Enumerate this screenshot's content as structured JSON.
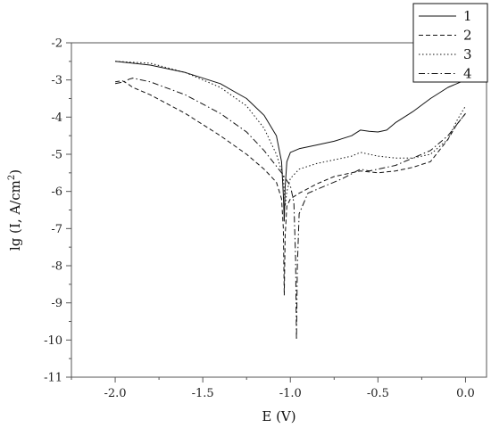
{
  "chart_data": {
    "type": "line",
    "title": "",
    "xlabel": "E (V)",
    "ylabel": "lg (I, A/cm²)",
    "ylabel_base": "lg (I, A/cm",
    "ylabel_sup": "2",
    "ylabel_tail": ")",
    "xlim": [
      -2.25,
      0.12
    ],
    "ylim": [
      -11,
      -2
    ],
    "xticks": [
      -2.0,
      -1.5,
      -1.0,
      -0.5,
      0.0
    ],
    "xtick_labels": [
      "-2.0",
      "-1.5",
      "-1.0",
      "-0.5",
      "0.0"
    ],
    "yticks": [
      -2,
      -3,
      -4,
      -5,
      -6,
      -7,
      -8,
      -9,
      -10,
      -11
    ],
    "ytick_labels": [
      "-2",
      "-3",
      "-4",
      "-5",
      "-6",
      "-7",
      "-8",
      "-9",
      "-10",
      "-11"
    ],
    "grid": false,
    "legend_position": "top-right",
    "series": [
      {
        "name": "1",
        "style": "solid",
        "x": [
          -2.0,
          -1.8,
          -1.6,
          -1.4,
          -1.25,
          -1.15,
          -1.08,
          -1.05,
          -1.04,
          -1.035,
          -1.03,
          -1.02,
          -1.0,
          -0.95,
          -0.85,
          -0.75,
          -0.65,
          -0.6,
          -0.55,
          -0.5,
          -0.45,
          -0.4,
          -0.3,
          -0.2,
          -0.1,
          0.0
        ],
        "y": [
          -2.5,
          -2.6,
          -2.8,
          -3.1,
          -3.5,
          -3.95,
          -4.5,
          -5.2,
          -6.1,
          -6.8,
          -5.9,
          -5.2,
          -4.95,
          -4.85,
          -4.75,
          -4.65,
          -4.5,
          -4.35,
          -4.38,
          -4.4,
          -4.35,
          -4.15,
          -3.85,
          -3.5,
          -3.2,
          -3.0
        ]
      },
      {
        "name": "2",
        "style": "dashed",
        "x": [
          -2.0,
          -1.96,
          -1.93,
          -1.9,
          -1.8,
          -1.6,
          -1.4,
          -1.25,
          -1.15,
          -1.08,
          -1.05,
          -1.04,
          -1.035,
          -1.03,
          -1.02,
          -1.0,
          -0.95,
          -0.85,
          -0.75,
          -0.65,
          -0.6,
          -0.5,
          -0.4,
          -0.3,
          -0.2,
          -0.15,
          -0.1,
          -0.05,
          0.0
        ],
        "y": [
          -3.05,
          -3.02,
          -3.1,
          -3.2,
          -3.4,
          -3.9,
          -4.5,
          -5.0,
          -5.4,
          -5.75,
          -6.2,
          -7.0,
          -8.8,
          -7.2,
          -6.4,
          -6.2,
          -6.05,
          -5.8,
          -5.6,
          -5.5,
          -5.45,
          -5.5,
          -5.45,
          -5.35,
          -5.2,
          -4.9,
          -4.6,
          -4.2,
          -3.9
        ]
      },
      {
        "name": "3",
        "style": "dotted",
        "x": [
          -2.0,
          -1.8,
          -1.6,
          -1.4,
          -1.25,
          -1.15,
          -1.08,
          -1.04,
          -1.03,
          -1.02,
          -1.0,
          -0.95,
          -0.85,
          -0.75,
          -0.65,
          -0.6,
          -0.55,
          -0.5,
          -0.4,
          -0.3,
          -0.2,
          -0.1,
          -0.05,
          0.0
        ],
        "y": [
          -2.5,
          -2.55,
          -2.8,
          -3.2,
          -3.7,
          -4.3,
          -5.0,
          -5.6,
          -6.4,
          -6.0,
          -5.65,
          -5.4,
          -5.25,
          -5.15,
          -5.05,
          -4.95,
          -5.0,
          -5.05,
          -5.1,
          -5.1,
          -5.0,
          -4.6,
          -4.1,
          -3.7
        ]
      },
      {
        "name": "4",
        "style": "dashdot",
        "x": [
          -2.0,
          -1.95,
          -1.92,
          -1.9,
          -1.8,
          -1.6,
          -1.4,
          -1.25,
          -1.15,
          -1.05,
          -1.0,
          -0.98,
          -0.97,
          -0.965,
          -0.96,
          -0.95,
          -0.9,
          -0.8,
          -0.7,
          -0.6,
          -0.55,
          -0.5,
          -0.4,
          -0.3,
          -0.2,
          -0.1,
          0.0
        ],
        "y": [
          -3.1,
          -3.05,
          -2.98,
          -2.95,
          -3.05,
          -3.4,
          -3.9,
          -4.4,
          -4.9,
          -5.5,
          -5.85,
          -6.3,
          -7.8,
          -10.0,
          -8.0,
          -6.6,
          -6.05,
          -5.85,
          -5.65,
          -5.4,
          -5.45,
          -5.4,
          -5.3,
          -5.1,
          -4.9,
          -4.5,
          -3.9
        ]
      }
    ]
  },
  "colors": {
    "axis": "#555555",
    "line": "#111111",
    "background": "#ffffff"
  }
}
